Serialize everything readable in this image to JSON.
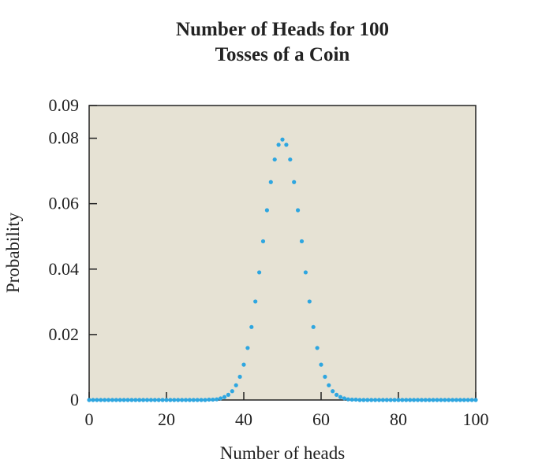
{
  "chart_data": {
    "type": "scatter",
    "title_line1": "Number of Heads for 100",
    "title_line2": "Tosses of a Coin",
    "xlabel": "Number of heads",
    "ylabel": "Probability",
    "xlim": [
      0,
      100
    ],
    "ylim": [
      0,
      0.09
    ],
    "xticks": [
      0,
      20,
      40,
      60,
      80,
      100
    ],
    "xtick_labels": [
      "0",
      "20",
      "40",
      "60",
      "80",
      "100"
    ],
    "yticks": [
      0,
      0.02,
      0.04,
      0.06,
      0.08,
      0.09
    ],
    "ytick_labels": [
      "0",
      "0.02",
      "0.04",
      "0.06",
      "0.08",
      "0.09"
    ],
    "grid": false,
    "legend": "none",
    "plot_background": "#e6e2d4",
    "point_color": "#2ea6e0",
    "series": [
      {
        "x": [
          0,
          1,
          2,
          3,
          4,
          5,
          6,
          7,
          8,
          9,
          10,
          11,
          12,
          13,
          14,
          15,
          16,
          17,
          18,
          19,
          20,
          21,
          22,
          23,
          24,
          25,
          26,
          27,
          28,
          29,
          30,
          31,
          32,
          33,
          34,
          35,
          36,
          37,
          38,
          39,
          40,
          41,
          42,
          43,
          44,
          45,
          46,
          47,
          48,
          49,
          50,
          51,
          52,
          53,
          54,
          55,
          56,
          57,
          58,
          59,
          60,
          61,
          62,
          63,
          64,
          65,
          66,
          67,
          68,
          69,
          70,
          71,
          72,
          73,
          74,
          75,
          76,
          77,
          78,
          79,
          80,
          81,
          82,
          83,
          84,
          85,
          86,
          87,
          88,
          89,
          90,
          91,
          92,
          93,
          94,
          95,
          96,
          97,
          98,
          99,
          100
        ],
        "y": [
          0,
          0,
          0,
          0,
          0,
          0,
          0,
          0,
          0,
          0,
          0,
          0,
          0,
          0,
          0,
          0,
          0,
          0,
          0,
          0,
          0,
          0,
          0,
          0,
          0,
          0,
          0,
          0,
          0,
          0,
          0,
          0.0001,
          0.0001,
          0.0002,
          0.0005,
          0.0009,
          0.0016,
          0.0027,
          0.0045,
          0.0071,
          0.0108,
          0.0159,
          0.0223,
          0.0301,
          0.039,
          0.0485,
          0.058,
          0.0666,
          0.0735,
          0.078,
          0.0796,
          0.078,
          0.0735,
          0.0666,
          0.058,
          0.0485,
          0.039,
          0.0301,
          0.0223,
          0.0159,
          0.0108,
          0.0071,
          0.0045,
          0.0027,
          0.0016,
          0.0009,
          0.0005,
          0.0002,
          0.0001,
          0.0001,
          0,
          0,
          0,
          0,
          0,
          0,
          0,
          0,
          0,
          0,
          0,
          0,
          0,
          0,
          0,
          0,
          0,
          0,
          0,
          0,
          0,
          0,
          0,
          0,
          0,
          0,
          0,
          0,
          0,
          0,
          0
        ]
      }
    ]
  }
}
